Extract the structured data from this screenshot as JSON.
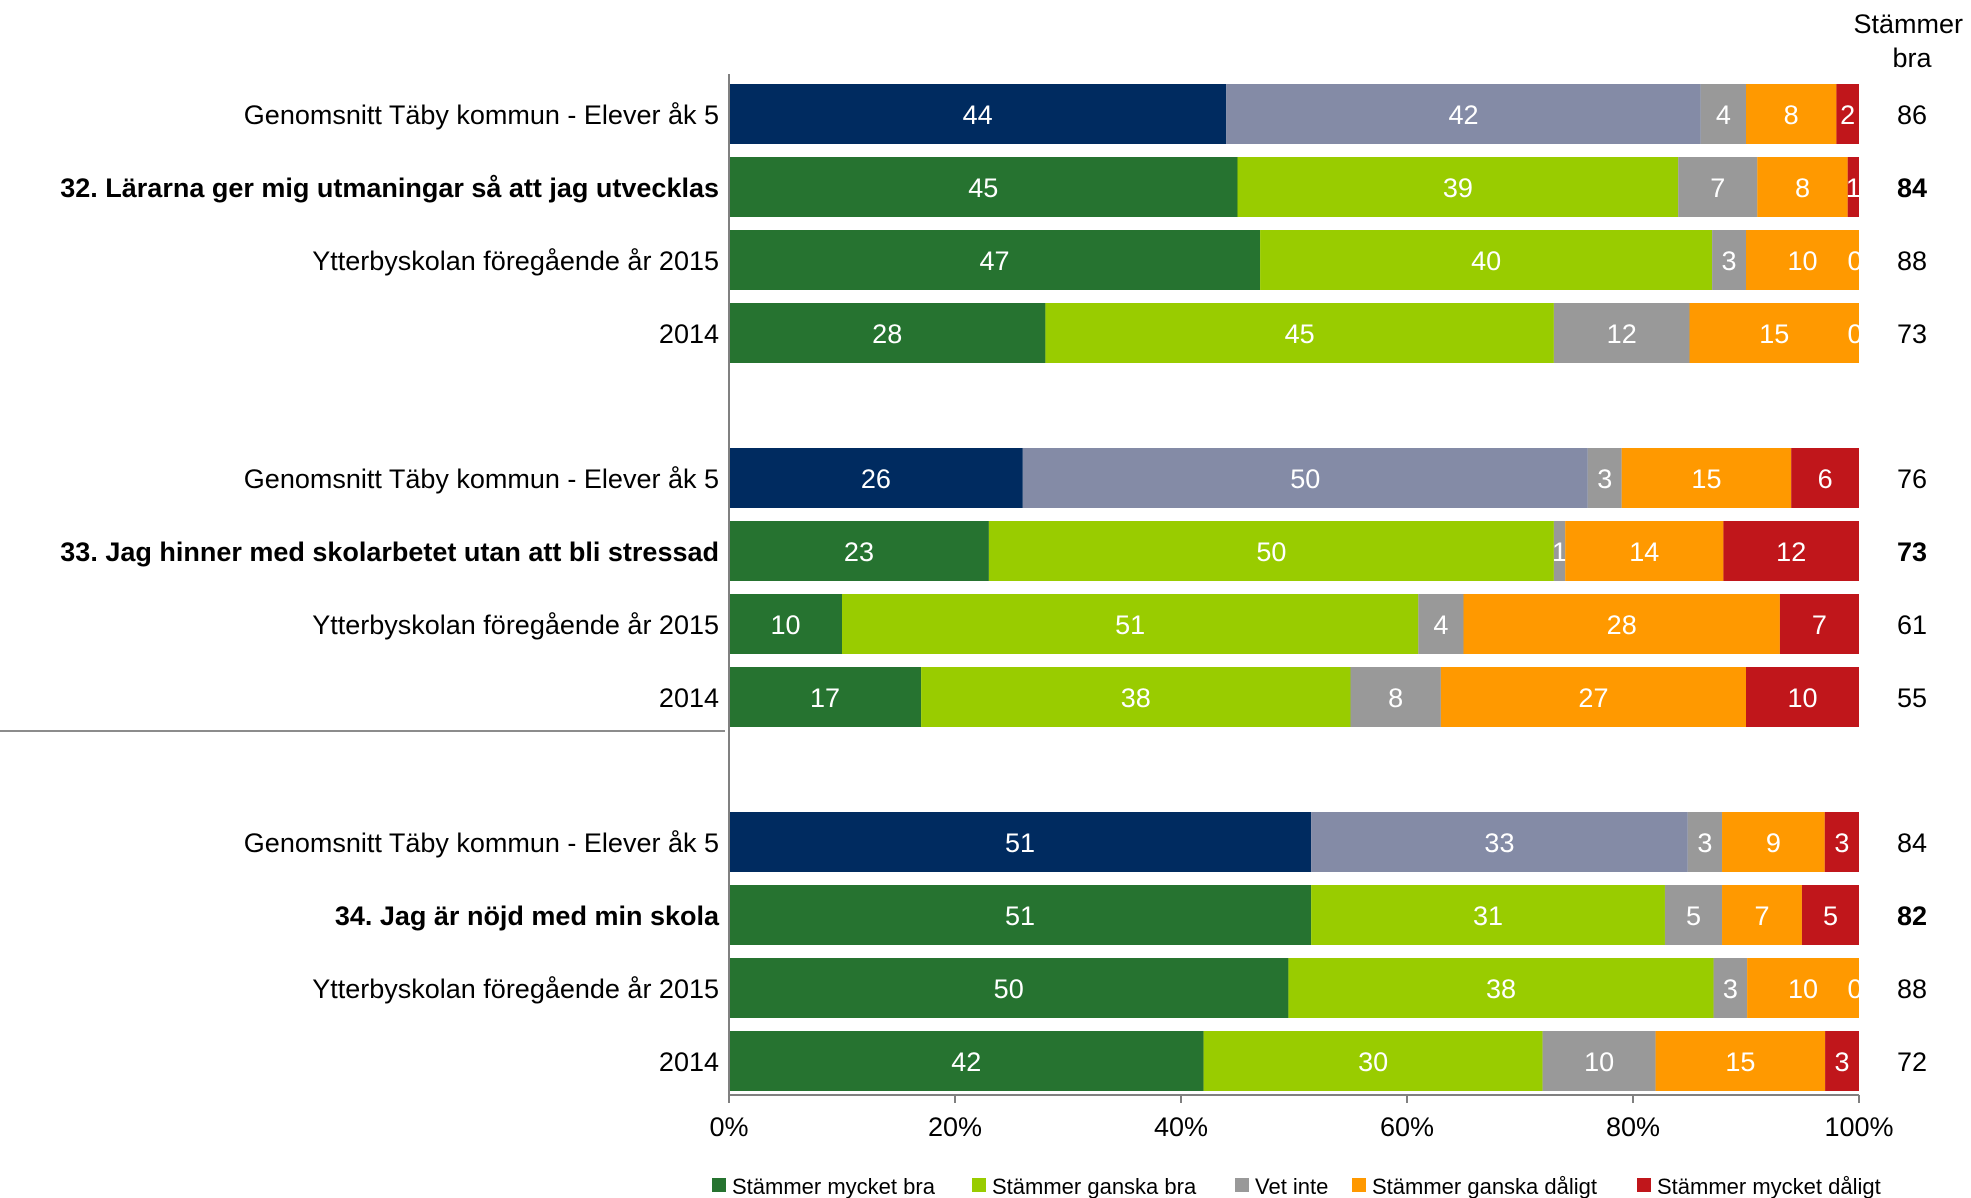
{
  "chart_data": {
    "type": "bar",
    "orientation": "horizontal",
    "stacked": "percent",
    "title": "",
    "xlabel": "",
    "ylabel": "",
    "xlim": [
      0,
      100
    ],
    "x_ticks": [
      "0%",
      "20%",
      "40%",
      "60%",
      "80%",
      "100%"
    ],
    "grid": false,
    "legend_position": "bottom",
    "right_column_header": "Stämmer bra",
    "series": [
      {
        "name": "Stämmer mycket bra",
        "color": "#267330",
        "benchmark_color": "#002B60"
      },
      {
        "name": "Stämmer ganska bra",
        "color": "#99CC00",
        "benchmark_color": "#848BA6"
      },
      {
        "name": "Vet inte",
        "color": "#999999",
        "benchmark_color": "#999999"
      },
      {
        "name": "Stämmer ganska dåligt",
        "color": "#FF9900",
        "benchmark_color": "#FF9900"
      },
      {
        "name": "Stämmer mycket dåligt",
        "color": "#C0161B",
        "benchmark_color": "#C0161B"
      }
    ],
    "groups": [
      {
        "rows": [
          {
            "label": "Genomsnitt Täby kommun - Elever åk 5",
            "style": "benchmark",
            "values": [
              44,
              42,
              4,
              8,
              2
            ],
            "total": "86"
          },
          {
            "label": "32. Lärarna ger mig utmaningar så att jag utvecklas",
            "style": "bold",
            "values": [
              45,
              39,
              7,
              8,
              1
            ],
            "total": "84"
          },
          {
            "label": "Ytterbyskolan föregående år 2015",
            "style": "normal",
            "values": [
              47,
              40,
              3,
              10,
              0
            ],
            "total": "88"
          },
          {
            "label": "2014",
            "style": "normal",
            "values": [
              28,
              45,
              12,
              15,
              0
            ],
            "total": "73"
          }
        ]
      },
      {
        "rows": [
          {
            "label": "Genomsnitt Täby kommun - Elever åk 5",
            "style": "benchmark",
            "values": [
              26,
              50,
              3,
              15,
              6
            ],
            "total": "76"
          },
          {
            "label": "33. Jag hinner med skolarbetet utan att bli stressad",
            "style": "bold",
            "values": [
              23,
              50,
              1,
              14,
              12
            ],
            "total": "73"
          },
          {
            "label": "Ytterbyskolan föregående år 2015",
            "style": "normal",
            "values": [
              10,
              51,
              4,
              28,
              7
            ],
            "total": "61"
          },
          {
            "label": "2014",
            "style": "normal",
            "values": [
              17,
              38,
              8,
              27,
              10
            ],
            "total": "55"
          }
        ]
      },
      {
        "rows": [
          {
            "label": "Genomsnitt Täby kommun - Elever åk 5",
            "style": "benchmark",
            "values": [
              51,
              33,
              3,
              9,
              3
            ],
            "total": "84"
          },
          {
            "label": "34. Jag är nöjd med min skola",
            "style": "bold",
            "values": [
              51,
              31,
              5,
              7,
              5
            ],
            "total": "82"
          },
          {
            "label": "Ytterbyskolan föregående år 2015",
            "style": "normal",
            "values": [
              50,
              38,
              3,
              10,
              0
            ],
            "total": "88"
          },
          {
            "label": "2014",
            "style": "normal",
            "values": [
              42,
              30,
              10,
              15,
              3
            ],
            "total": "72"
          }
        ]
      }
    ]
  }
}
